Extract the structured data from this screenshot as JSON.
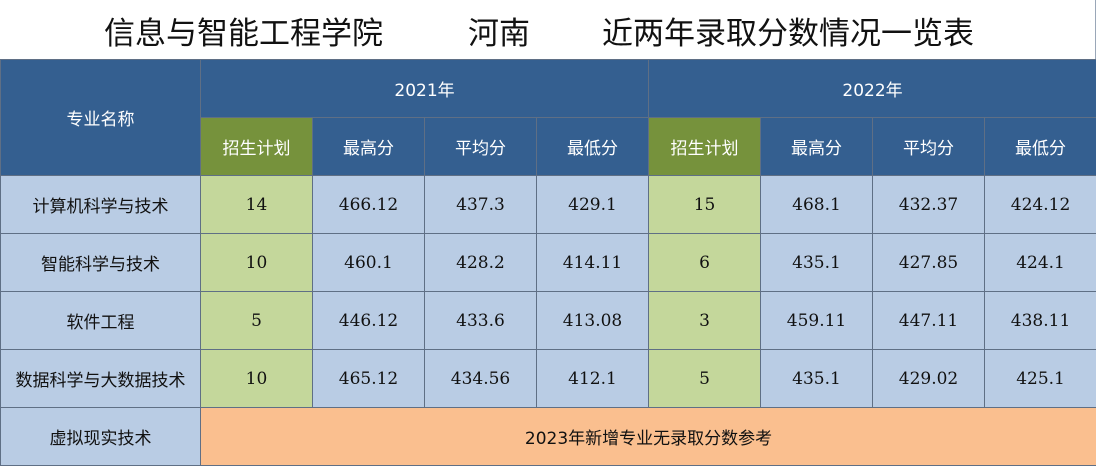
{
  "title": {
    "part1": "信息与智能工程学院",
    "part2": "河南",
    "part3": "近两年录取分数情况一览表"
  },
  "table": {
    "col_major": "专业名称",
    "years": [
      "2021年",
      "2022年"
    ],
    "sub_headers": [
      "招生计划",
      "最高分",
      "平均分",
      "最低分"
    ],
    "rows": [
      {
        "name": "计算机科学与技术",
        "y2021": [
          "14",
          "466.12",
          "437.3",
          "429.1"
        ],
        "y2022": [
          "15",
          "468.1",
          "432.37",
          "424.12"
        ]
      },
      {
        "name": "智能科学与技术",
        "y2021": [
          "10",
          "460.1",
          "428.2",
          "414.11"
        ],
        "y2022": [
          "6",
          "435.1",
          "427.85",
          "424.1"
        ]
      },
      {
        "name": "软件工程",
        "y2021": [
          "5",
          "446.12",
          "433.6",
          "413.08"
        ],
        "y2022": [
          "3",
          "459.11",
          "447.11",
          "438.11"
        ]
      },
      {
        "name": "数据科学与大数据技术",
        "y2021": [
          "10",
          "465.12",
          "434.56",
          "412.1"
        ],
        "y2022": [
          "5",
          "435.1",
          "429.02",
          "425.1"
        ]
      }
    ],
    "last_row": {
      "name": "虚拟现实技术",
      "note": "2023年新增专业无录取分数参考"
    }
  },
  "colors": {
    "header_bg": "#345f90",
    "plan_header_bg": "#76923c",
    "cell_bg": "#b9cce4",
    "plan_cell_bg": "#c4d79b",
    "note_bg": "#fabf8f"
  }
}
